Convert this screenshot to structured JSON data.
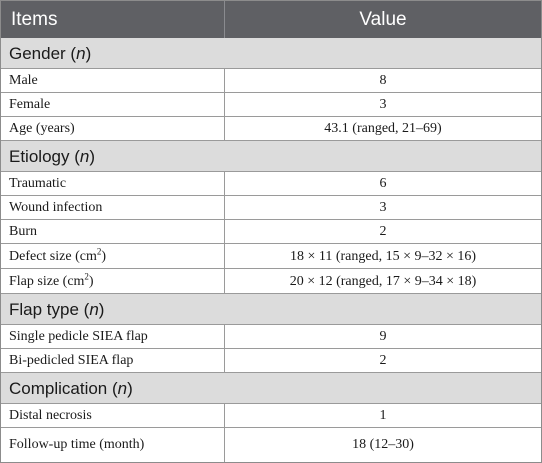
{
  "header": {
    "items": "Items",
    "value": "Value"
  },
  "sections": {
    "gender": {
      "label": "Gender",
      "n": "n"
    },
    "etiology": {
      "label": "Etiology",
      "n": "n"
    },
    "flap_type": {
      "label": "Flap type",
      "n": "n"
    },
    "complication": {
      "label": "Complication",
      "n": "n"
    }
  },
  "rows": {
    "male": {
      "item": "Male",
      "value": "8"
    },
    "female": {
      "item": "Female",
      "value": "3"
    },
    "age": {
      "item": "Age (years)",
      "value": "43.1 (ranged, 21–69)"
    },
    "traumatic": {
      "item": "Traumatic",
      "value": "6"
    },
    "wound_infection": {
      "item": "Wound infection",
      "value": "3"
    },
    "burn": {
      "item": "Burn",
      "value": "2"
    },
    "defect_size": {
      "item": "Defect size (cm",
      "sup": "2",
      "item_end": ")",
      "value": "18 × 11 (ranged, 15 × 9–32 × 16)"
    },
    "flap_size": {
      "item": "Flap size (cm",
      "sup": "2",
      "item_end": ")",
      "value": "20 × 12 (ranged, 17 × 9–34 × 18)"
    },
    "single_pedicle": {
      "item": "Single pedicle SIEA flap",
      "value": "9"
    },
    "bi_pedicled": {
      "item": "Bi-pedicled SIEA flap",
      "value": "2"
    },
    "distal_necrosis": {
      "item": "Distal necrosis",
      "value": "1"
    },
    "follow_up": {
      "item": "Follow-up time (month)",
      "value": "18 (12–30)"
    }
  }
}
